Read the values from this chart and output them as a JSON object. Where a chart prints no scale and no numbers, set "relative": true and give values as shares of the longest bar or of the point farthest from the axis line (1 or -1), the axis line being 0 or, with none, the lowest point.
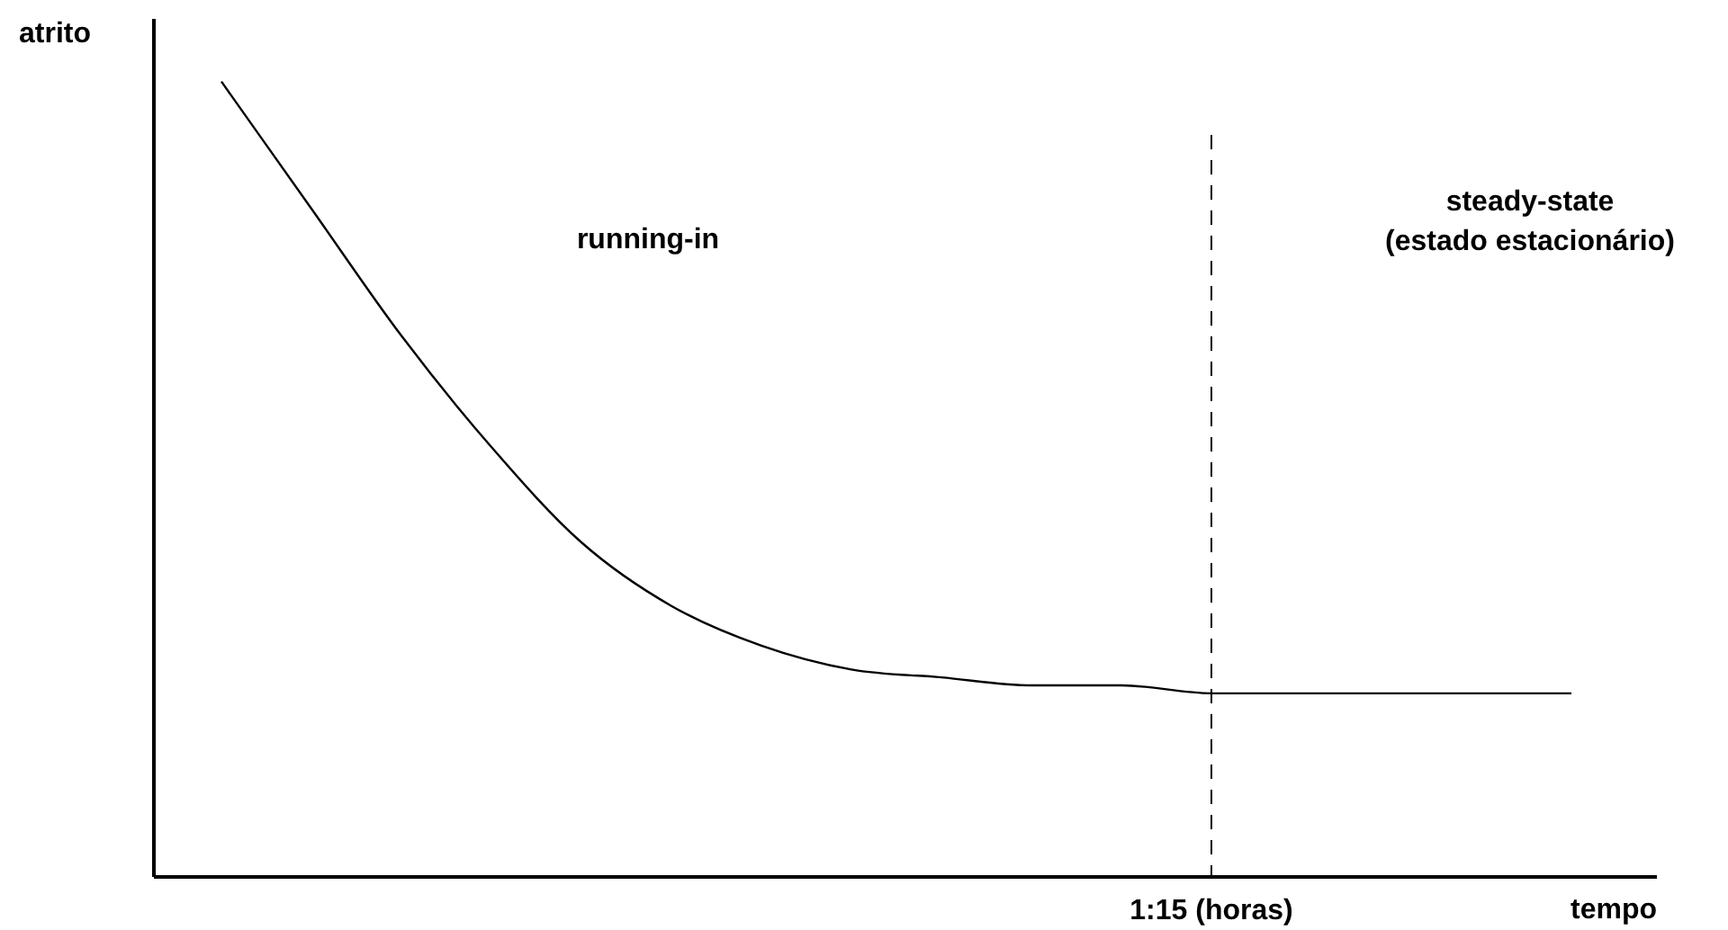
{
  "chart_data": {
    "type": "line",
    "relative": true,
    "xlabel": "tempo",
    "ylabel": "atrito",
    "categories": [
      null,
      null,
      null,
      null,
      null,
      null,
      null,
      null,
      null,
      null,
      null,
      null,
      null,
      null,
      null,
      null
    ],
    "series": [
      {
        "color": "#000000",
        "values": [
          1.0,
          0.84,
          0.68,
          0.54,
          0.42,
          0.34,
          0.29,
          0.26,
          0.25,
          0.24,
          0.24,
          0.23,
          0.23,
          0.23,
          0.23,
          0.23
        ]
      }
    ],
    "annotations": [
      "running-in",
      "steady-state\n(estado estacionário)",
      "1:15 (horas)"
    ],
    "marker": "none",
    "line_style": "solid"
  }
}
